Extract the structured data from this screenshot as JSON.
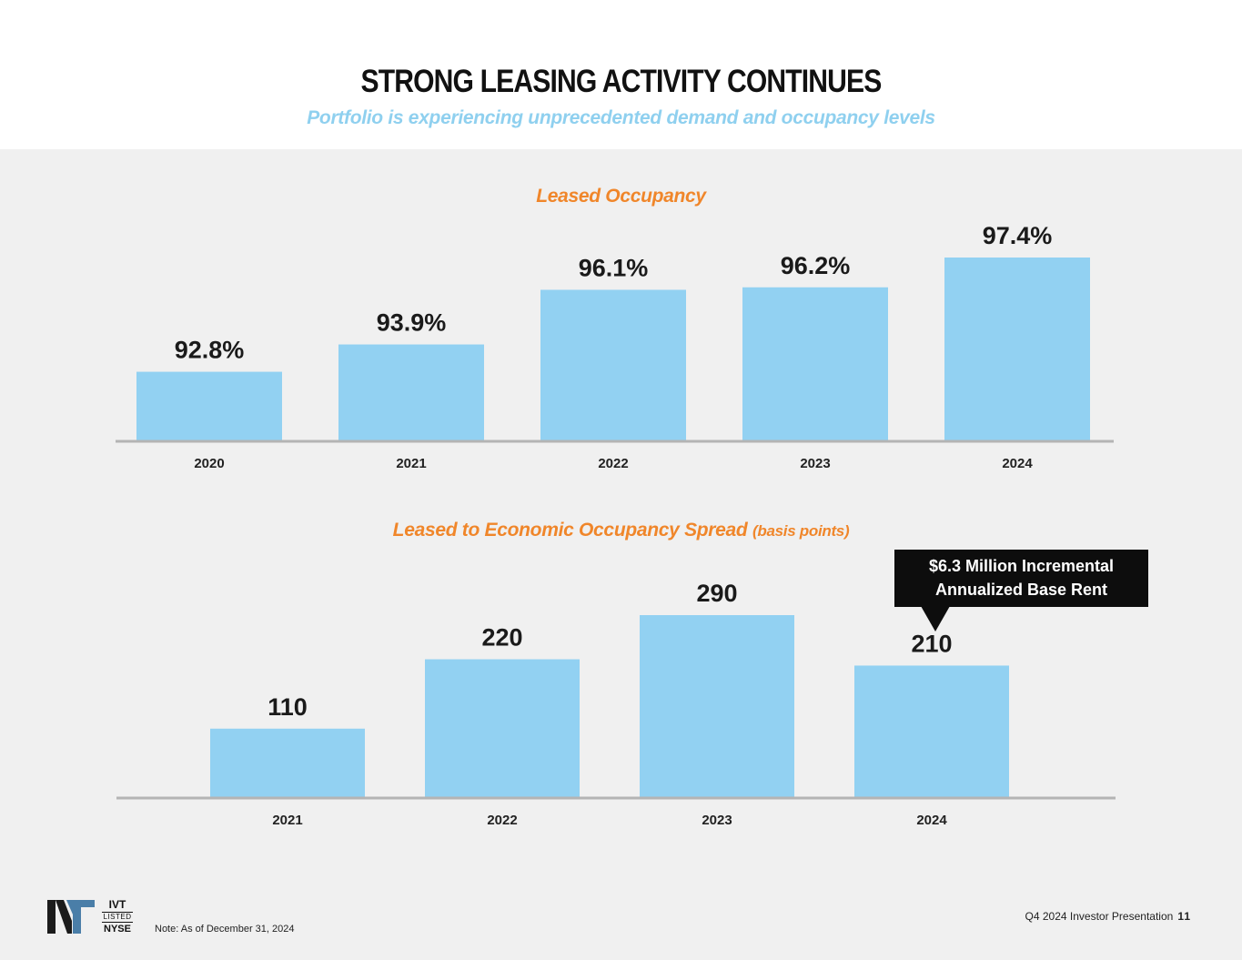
{
  "header": {
    "title": "STRONG LEASING ACTIVITY CONTINUES",
    "subtitle": "Portfolio is experiencing unprecedented demand and occupancy levels"
  },
  "colors": {
    "bar": "#92d1f2",
    "chart_title": "#f0862a",
    "subtitle": "#8fd0ef",
    "panel": "#f0f0f0"
  },
  "chart_data": [
    {
      "type": "bar",
      "title": "Leased Occupancy",
      "categories": [
        "2020",
        "2021",
        "2022",
        "2023",
        "2024"
      ],
      "values": [
        92.8,
        93.9,
        96.1,
        96.2,
        97.4
      ],
      "value_labels": [
        "92.8%",
        "93.9%",
        "96.1%",
        "96.2%",
        "97.4%"
      ],
      "xlabel": "",
      "ylabel": "",
      "ylim": [
        90,
        97.4
      ],
      "grid": false
    },
    {
      "type": "bar",
      "title": "Leased to Economic Occupancy Spread",
      "title_suffix": "(basis points)",
      "categories": [
        "2021",
        "2022",
        "2023",
        "2024"
      ],
      "values": [
        110,
        220,
        290,
        210
      ],
      "value_labels": [
        "110",
        "220",
        "290",
        "210"
      ],
      "xlabel": "",
      "ylabel": "",
      "ylim": [
        0,
        290
      ],
      "grid": false,
      "annotation": {
        "line1": "$6.3 Million Incremental",
        "line2": "Annualized Base Rent",
        "target": "2024"
      }
    }
  ],
  "footer": {
    "ticker": "IVT",
    "listed": "LISTED",
    "exchange": "NYSE",
    "note": "Note: As of December 31, 2024",
    "presentation": "Q4 2024 Investor Presentation",
    "page": "11"
  }
}
